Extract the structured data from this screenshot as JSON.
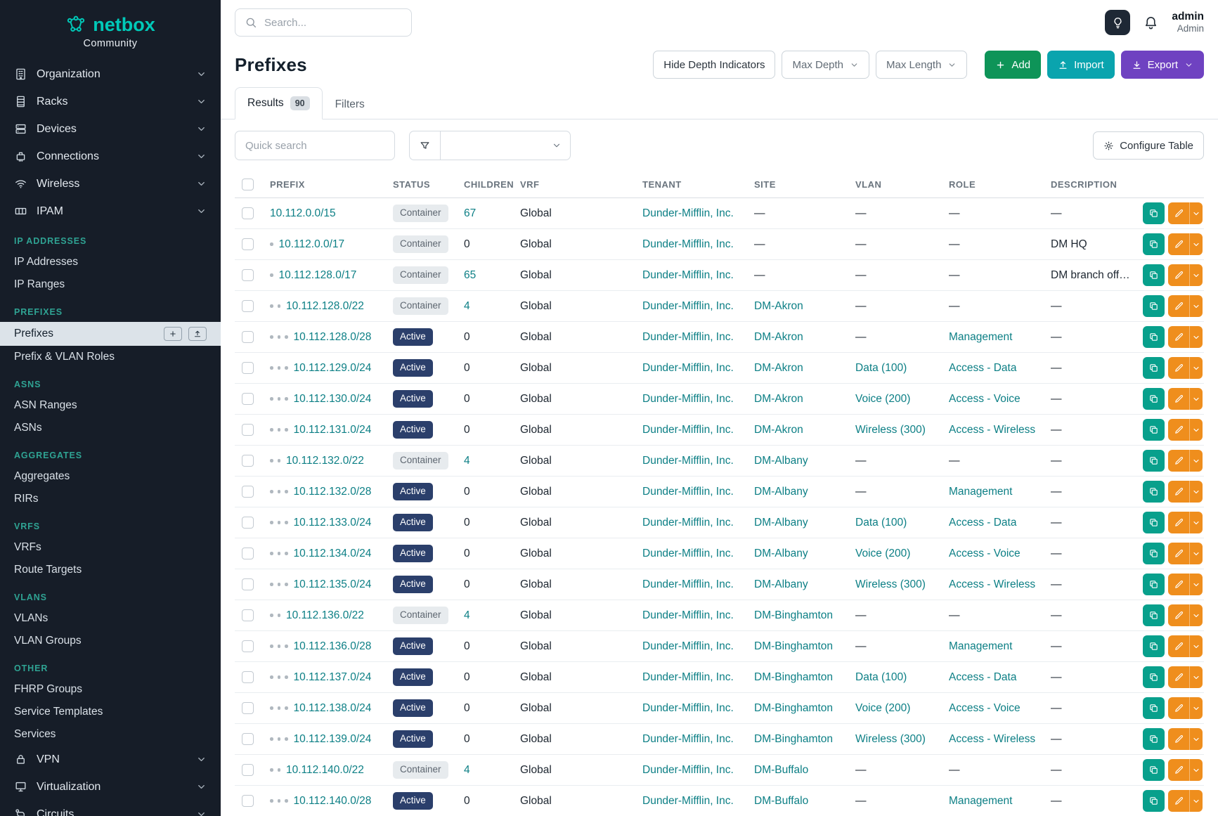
{
  "brand": {
    "name": "netbox",
    "subtitle": "Community"
  },
  "topbar": {
    "search_placeholder": "Search...",
    "user": {
      "name": "admin",
      "role": "Admin"
    }
  },
  "sidebar": {
    "top_groups": [
      {
        "label": "Organization",
        "icon": "building-icon"
      },
      {
        "label": "Racks",
        "icon": "rack-icon"
      },
      {
        "label": "Devices",
        "icon": "device-icon"
      },
      {
        "label": "Connections",
        "icon": "connections-icon"
      },
      {
        "label": "Wireless",
        "icon": "wireless-icon"
      },
      {
        "label": "IPAM",
        "icon": "ipam-icon",
        "expanded": true
      }
    ],
    "sections": [
      {
        "heading": "IP ADDRESSES",
        "items": [
          {
            "label": "IP Addresses"
          },
          {
            "label": "IP Ranges"
          }
        ]
      },
      {
        "heading": "PREFIXES",
        "items": [
          {
            "label": "Prefixes",
            "active": true,
            "actions": [
              "plus-icon",
              "upload-icon"
            ]
          },
          {
            "label": "Prefix & VLAN Roles"
          }
        ]
      },
      {
        "heading": "ASNS",
        "items": [
          {
            "label": "ASN Ranges"
          },
          {
            "label": "ASNs"
          }
        ]
      },
      {
        "heading": "AGGREGATES",
        "items": [
          {
            "label": "Aggregates"
          },
          {
            "label": "RIRs"
          }
        ]
      },
      {
        "heading": "VRFS",
        "items": [
          {
            "label": "VRFs"
          },
          {
            "label": "Route Targets"
          }
        ]
      },
      {
        "heading": "VLANS",
        "items": [
          {
            "label": "VLANs"
          },
          {
            "label": "VLAN Groups"
          }
        ]
      },
      {
        "heading": "OTHER",
        "items": [
          {
            "label": "FHRP Groups"
          },
          {
            "label": "Service Templates"
          },
          {
            "label": "Services"
          }
        ]
      }
    ],
    "bottom_groups": [
      {
        "label": "VPN",
        "icon": "vpn-icon"
      },
      {
        "label": "Virtualization",
        "icon": "virtualization-icon"
      },
      {
        "label": "Circuits",
        "icon": "circuits-icon"
      }
    ]
  },
  "page": {
    "title": "Prefixes",
    "toolbar": {
      "hide_depth": "Hide Depth Indicators",
      "max_depth": "Max Depth",
      "max_length": "Max Length",
      "add": "Add",
      "import": "Import",
      "export": "Export"
    },
    "tabs": {
      "results_label": "Results",
      "results_count": "90",
      "filters_label": "Filters"
    },
    "quick_search_placeholder": "Quick search",
    "configure_table": "Configure Table"
  },
  "table": {
    "columns": [
      "PREFIX",
      "STATUS",
      "CHILDREN",
      "VRF",
      "TENANT",
      "SITE",
      "VLAN",
      "ROLE",
      "DESCRIPTION"
    ],
    "rows": [
      {
        "depth": 0,
        "prefix": "10.112.0.0/15",
        "status": "Container",
        "children": "67",
        "vrf": "Global",
        "tenant": "Dunder-Mifflin, Inc.",
        "site": "—",
        "vlan": "—",
        "role": "—",
        "description": "—"
      },
      {
        "depth": 1,
        "prefix": "10.112.0.0/17",
        "status": "Container",
        "children": "0",
        "vrf": "Global",
        "tenant": "Dunder-Mifflin, Inc.",
        "site": "—",
        "vlan": "—",
        "role": "—",
        "description": "DM HQ"
      },
      {
        "depth": 1,
        "prefix": "10.112.128.0/17",
        "status": "Container",
        "children": "65",
        "vrf": "Global",
        "tenant": "Dunder-Mifflin, Inc.",
        "site": "—",
        "vlan": "—",
        "role": "—",
        "description": "DM branch offices"
      },
      {
        "depth": 2,
        "prefix": "10.112.128.0/22",
        "status": "Container",
        "children": "4",
        "vrf": "Global",
        "tenant": "Dunder-Mifflin, Inc.",
        "site": "DM-Akron",
        "vlan": "—",
        "role": "—",
        "description": "—"
      },
      {
        "depth": 3,
        "prefix": "10.112.128.0/28",
        "status": "Active",
        "children": "0",
        "vrf": "Global",
        "tenant": "Dunder-Mifflin, Inc.",
        "site": "DM-Akron",
        "vlan": "—",
        "role": "Management",
        "description": "—"
      },
      {
        "depth": 3,
        "prefix": "10.112.129.0/24",
        "status": "Active",
        "children": "0",
        "vrf": "Global",
        "tenant": "Dunder-Mifflin, Inc.",
        "site": "DM-Akron",
        "vlan": "Data (100)",
        "role": "Access - Data",
        "description": "—"
      },
      {
        "depth": 3,
        "prefix": "10.112.130.0/24",
        "status": "Active",
        "children": "0",
        "vrf": "Global",
        "tenant": "Dunder-Mifflin, Inc.",
        "site": "DM-Akron",
        "vlan": "Voice (200)",
        "role": "Access - Voice",
        "description": "—"
      },
      {
        "depth": 3,
        "prefix": "10.112.131.0/24",
        "status": "Active",
        "children": "0",
        "vrf": "Global",
        "tenant": "Dunder-Mifflin, Inc.",
        "site": "DM-Akron",
        "vlan": "Wireless (300)",
        "role": "Access - Wireless",
        "description": "—"
      },
      {
        "depth": 2,
        "prefix": "10.112.132.0/22",
        "status": "Container",
        "children": "4",
        "vrf": "Global",
        "tenant": "Dunder-Mifflin, Inc.",
        "site": "DM-Albany",
        "vlan": "—",
        "role": "—",
        "description": "—"
      },
      {
        "depth": 3,
        "prefix": "10.112.132.0/28",
        "status": "Active",
        "children": "0",
        "vrf": "Global",
        "tenant": "Dunder-Mifflin, Inc.",
        "site": "DM-Albany",
        "vlan": "—",
        "role": "Management",
        "description": "—"
      },
      {
        "depth": 3,
        "prefix": "10.112.133.0/24",
        "status": "Active",
        "children": "0",
        "vrf": "Global",
        "tenant": "Dunder-Mifflin, Inc.",
        "site": "DM-Albany",
        "vlan": "Data (100)",
        "role": "Access - Data",
        "description": "—"
      },
      {
        "depth": 3,
        "prefix": "10.112.134.0/24",
        "status": "Active",
        "children": "0",
        "vrf": "Global",
        "tenant": "Dunder-Mifflin, Inc.",
        "site": "DM-Albany",
        "vlan": "Voice (200)",
        "role": "Access - Voice",
        "description": "—"
      },
      {
        "depth": 3,
        "prefix": "10.112.135.0/24",
        "status": "Active",
        "children": "0",
        "vrf": "Global",
        "tenant": "Dunder-Mifflin, Inc.",
        "site": "DM-Albany",
        "vlan": "Wireless (300)",
        "role": "Access - Wireless",
        "description": "—"
      },
      {
        "depth": 2,
        "prefix": "10.112.136.0/22",
        "status": "Container",
        "children": "4",
        "vrf": "Global",
        "tenant": "Dunder-Mifflin, Inc.",
        "site": "DM-Binghamton",
        "vlan": "—",
        "role": "—",
        "description": "—"
      },
      {
        "depth": 3,
        "prefix": "10.112.136.0/28",
        "status": "Active",
        "children": "0",
        "vrf": "Global",
        "tenant": "Dunder-Mifflin, Inc.",
        "site": "DM-Binghamton",
        "vlan": "—",
        "role": "Management",
        "description": "—"
      },
      {
        "depth": 3,
        "prefix": "10.112.137.0/24",
        "status": "Active",
        "children": "0",
        "vrf": "Global",
        "tenant": "Dunder-Mifflin, Inc.",
        "site": "DM-Binghamton",
        "vlan": "Data (100)",
        "role": "Access - Data",
        "description": "—"
      },
      {
        "depth": 3,
        "prefix": "10.112.138.0/24",
        "status": "Active",
        "children": "0",
        "vrf": "Global",
        "tenant": "Dunder-Mifflin, Inc.",
        "site": "DM-Binghamton",
        "vlan": "Voice (200)",
        "role": "Access - Voice",
        "description": "—"
      },
      {
        "depth": 3,
        "prefix": "10.112.139.0/24",
        "status": "Active",
        "children": "0",
        "vrf": "Global",
        "tenant": "Dunder-Mifflin, Inc.",
        "site": "DM-Binghamton",
        "vlan": "Wireless (300)",
        "role": "Access - Wireless",
        "description": "—"
      },
      {
        "depth": 2,
        "prefix": "10.112.140.0/22",
        "status": "Container",
        "children": "4",
        "vrf": "Global",
        "tenant": "Dunder-Mifflin, Inc.",
        "site": "DM-Buffalo",
        "vlan": "—",
        "role": "—",
        "description": "—"
      },
      {
        "depth": 3,
        "prefix": "10.112.140.0/28",
        "status": "Active",
        "children": "0",
        "vrf": "Global",
        "tenant": "Dunder-Mifflin, Inc.",
        "site": "DM-Buffalo",
        "vlan": "—",
        "role": "Management",
        "description": "—"
      }
    ]
  },
  "colors": {
    "brand_teal": "#00c9b8",
    "link_teal": "#0c7f85",
    "active_badge_blue": "#2b3f6b",
    "container_badge_gray": "#e7ebee",
    "add_green": "#0e9458",
    "import_cyan": "#0aa4ae",
    "export_purple": "#6f42c1",
    "edit_orange": "#ef8e1d",
    "copy_teal": "#08a08c",
    "sidebar_bg": "#161d28",
    "section_heading_teal": "#2fa393"
  }
}
